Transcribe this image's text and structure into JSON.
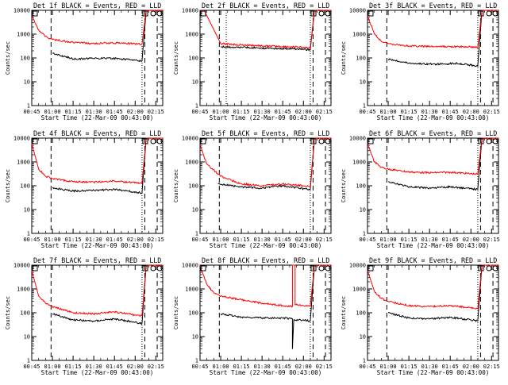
{
  "chart_data": [
    {
      "type": "line",
      "title": "Det 1f BLACK = Events, RED = LLD",
      "xlabel": "Start Time (22-Mar-09 00:43:00)",
      "ylabel": "Counts/sec",
      "yscale": "log",
      "ylim": [
        1,
        10000
      ],
      "xlim": [
        "00:45",
        "02:20"
      ],
      "xticks": [
        "00:45",
        "01:00",
        "01:15",
        "01:30",
        "01:45",
        "02:00",
        "02:15"
      ],
      "yticks": [
        "1",
        "10",
        "100",
        "1000",
        "10000"
      ],
      "grid": false,
      "vlines_dashed": [
        "00:59",
        "02:07",
        "02:16"
      ],
      "vlines_dotted": [
        "02:05"
      ],
      "annotation_markers": [
        "LLD",
        "LLD",
        "LLD"
      ],
      "series": [
        {
          "name": "Events",
          "color": "#000000",
          "x": [
            "01:00",
            "01:15",
            "01:30",
            "01:40",
            "01:50",
            "02:00",
            "02:05",
            "02:08"
          ],
          "y": [
            160,
            90,
            95,
            100,
            90,
            80,
            75,
            10000
          ]
        },
        {
          "name": "LLD",
          "color": "#ff0000",
          "x": [
            "00:45",
            "00:50",
            "00:55",
            "01:00",
            "01:15",
            "01:30",
            "01:40",
            "01:50",
            "02:00",
            "02:05",
            "02:08",
            "02:20"
          ],
          "y": [
            6000,
            1500,
            800,
            600,
            450,
            400,
            420,
            430,
            390,
            380,
            10000,
            10000
          ]
        }
      ]
    },
    {
      "type": "line",
      "title": "Det 2f BLACK = Events, RED = LLD",
      "xlabel": "Start Time (22-Mar-09 00:43:00)",
      "ylabel": "Counts/sec",
      "yscale": "log",
      "ylim": [
        1,
        10000
      ],
      "xlim": [
        "00:45",
        "02:20"
      ],
      "xticks": [
        "00:45",
        "01:00",
        "01:15",
        "01:30",
        "01:45",
        "02:00",
        "02:15"
      ],
      "yticks": [
        "1",
        "10",
        "100",
        "1000",
        "10000"
      ],
      "grid": false,
      "vlines_dashed": [
        "00:59",
        "02:07",
        "02:16"
      ],
      "vlines_dotted": [
        "01:04",
        "02:05"
      ],
      "annotation_markers": [
        "LLD",
        "LLD",
        "LLD"
      ],
      "series": [
        {
          "name": "Events",
          "color": "#000000",
          "x": [
            "01:00",
            "01:15",
            "01:30",
            "01:45",
            "02:00",
            "02:05",
            "02:08"
          ],
          "y": [
            300,
            280,
            260,
            250,
            230,
            220,
            10000
          ]
        },
        {
          "name": "LLD",
          "color": "#ff0000",
          "x": [
            "00:45",
            "00:48",
            "01:00",
            "01:15",
            "01:30",
            "01:45",
            "02:00",
            "02:05",
            "02:08",
            "02:20"
          ],
          "y": [
            10000,
            10000,
            400,
            350,
            320,
            300,
            280,
            260,
            10000,
            10000
          ]
        }
      ]
    },
    {
      "type": "line",
      "title": "Det 3f BLACK = Events, RED = LLD",
      "xlabel": "Start Time (22-Mar-09 00:43:00)",
      "ylabel": "Counts/sec",
      "yscale": "log",
      "ylim": [
        1,
        10000
      ],
      "xlim": [
        "00:45",
        "02:20"
      ],
      "xticks": [
        "00:45",
        "01:00",
        "01:15",
        "01:30",
        "01:45",
        "02:00",
        "02:15"
      ],
      "yticks": [
        "1",
        "10",
        "100",
        "1000",
        "10000"
      ],
      "grid": false,
      "vlines_dashed": [
        "00:59",
        "02:07",
        "02:16"
      ],
      "vlines_dotted": [
        "02:05"
      ],
      "annotation_markers": [
        "LLD",
        "LLD",
        "LLD"
      ],
      "series": [
        {
          "name": "Events",
          "color": "#000000",
          "x": [
            "01:00",
            "01:15",
            "01:30",
            "01:40",
            "01:50",
            "02:00",
            "02:05",
            "02:08"
          ],
          "y": [
            90,
            60,
            55,
            55,
            60,
            50,
            45,
            10000
          ]
        },
        {
          "name": "LLD",
          "color": "#ff0000",
          "x": [
            "00:45",
            "00:50",
            "00:55",
            "01:00",
            "01:15",
            "01:30",
            "01:45",
            "02:00",
            "02:05",
            "02:08",
            "02:20"
          ],
          "y": [
            6000,
            1000,
            500,
            400,
            320,
            300,
            300,
            290,
            280,
            10000,
            10000
          ]
        }
      ]
    },
    {
      "type": "line",
      "title": "Det 4f BLACK = Events, RED = LLD",
      "xlabel": "Start Time (22-Mar-09 00:43:00)",
      "ylabel": "Counts/sec",
      "yscale": "log",
      "ylim": [
        1,
        10000
      ],
      "xlim": [
        "00:45",
        "02:20"
      ],
      "xticks": [
        "00:45",
        "01:00",
        "01:15",
        "01:30",
        "01:45",
        "02:00",
        "02:15"
      ],
      "yticks": [
        "1",
        "10",
        "100",
        "1000",
        "10000"
      ],
      "grid": false,
      "vlines_dashed": [
        "00:59",
        "02:07",
        "02:16"
      ],
      "vlines_dotted": [
        "02:05"
      ],
      "annotation_markers": [
        "LLD",
        "LLD",
        "LLD"
      ],
      "series": [
        {
          "name": "Events",
          "color": "#000000",
          "x": [
            "01:00",
            "01:15",
            "01:30",
            "01:45",
            "01:55",
            "02:05",
            "02:08"
          ],
          "y": [
            80,
            60,
            65,
            70,
            60,
            50,
            10000
          ]
        },
        {
          "name": "LLD",
          "color": "#ff0000",
          "x": [
            "00:45",
            "00:50",
            "00:55",
            "01:00",
            "01:15",
            "01:30",
            "01:45",
            "01:55",
            "02:05",
            "02:08",
            "02:20"
          ],
          "y": [
            6000,
            500,
            250,
            200,
            150,
            140,
            160,
            140,
            130,
            10000,
            10000
          ]
        }
      ]
    },
    {
      "type": "line",
      "title": "Det 5f BLACK = Events, RED = LLD",
      "xlabel": "Start Time (22-Mar-09 00:43:00)",
      "ylabel": "Counts/sec",
      "yscale": "log",
      "ylim": [
        1,
        10000
      ],
      "xlim": [
        "00:45",
        "02:20"
      ],
      "xticks": [
        "00:45",
        "01:00",
        "01:15",
        "01:30",
        "01:45",
        "02:00",
        "02:15"
      ],
      "yticks": [
        "1",
        "10",
        "100",
        "1000",
        "10000"
      ],
      "grid": false,
      "vlines_dashed": [
        "00:59",
        "02:07",
        "02:16"
      ],
      "vlines_dotted": [
        "02:05"
      ],
      "annotation_markers": [
        "LLD",
        "LLD",
        "LLD"
      ],
      "series": [
        {
          "name": "Events",
          "color": "#000000",
          "x": [
            "00:58",
            "01:15",
            "01:30",
            "01:45",
            "02:00",
            "02:05",
            "02:08"
          ],
          "y": [
            120,
            90,
            80,
            100,
            75,
            70,
            10000
          ]
        },
        {
          "name": "LLD",
          "color": "#ff0000",
          "x": [
            "00:45",
            "00:50",
            "01:00",
            "01:15",
            "01:30",
            "01:45",
            "02:00",
            "02:05",
            "02:08",
            "02:20"
          ],
          "y": [
            5000,
            800,
            250,
            120,
            100,
            120,
            100,
            90,
            10000,
            10000
          ]
        }
      ]
    },
    {
      "type": "line",
      "title": "Det 6f BLACK = Events, RED = LLD",
      "xlabel": "Start Time (22-Mar-09 00:43:00)",
      "ylabel": "Counts/sec",
      "yscale": "log",
      "ylim": [
        1,
        10000
      ],
      "xlim": [
        "00:45",
        "02:20"
      ],
      "xticks": [
        "00:45",
        "01:00",
        "01:15",
        "01:30",
        "01:45",
        "02:00",
        "02:15"
      ],
      "yticks": [
        "1",
        "10",
        "100",
        "1000",
        "10000"
      ],
      "grid": false,
      "vlines_dashed": [
        "00:59",
        "02:07",
        "02:16"
      ],
      "vlines_dotted": [
        "02:05"
      ],
      "annotation_markers": [
        "LLD",
        "LLD",
        "LLD"
      ],
      "series": [
        {
          "name": "Events",
          "color": "#000000",
          "x": [
            "01:00",
            "01:15",
            "01:30",
            "01:45",
            "02:00",
            "02:05",
            "02:08"
          ],
          "y": [
            150,
            90,
            80,
            90,
            75,
            70,
            10000
          ]
        },
        {
          "name": "LLD",
          "color": "#ff0000",
          "x": [
            "00:45",
            "00:50",
            "00:55",
            "01:00",
            "01:15",
            "01:30",
            "01:45",
            "02:00",
            "02:05",
            "02:08",
            "02:20"
          ],
          "y": [
            6000,
            1000,
            600,
            500,
            380,
            350,
            370,
            320,
            310,
            10000,
            10000
          ]
        }
      ]
    },
    {
      "type": "line",
      "title": "Det 7f BLACK = Events, RED = LLD",
      "xlabel": "Start Time (22-Mar-09 00:43:00)",
      "ylabel": "Counts/sec",
      "yscale": "log",
      "ylim": [
        1,
        10000
      ],
      "xlim": [
        "00:45",
        "02:20"
      ],
      "xticks": [
        "00:45",
        "01:00",
        "01:15",
        "01:30",
        "01:45",
        "02:00",
        "02:15"
      ],
      "yticks": [
        "1",
        "10",
        "100",
        "1000",
        "10000"
      ],
      "grid": false,
      "vlines_dashed": [
        "00:59",
        "02:07",
        "02:16"
      ],
      "vlines_dotted": [
        "02:05"
      ],
      "annotation_markers": [
        "LLD",
        "LLD",
        "LLD"
      ],
      "series": [
        {
          "name": "Events",
          "color": "#000000",
          "x": [
            "01:00",
            "01:15",
            "01:30",
            "01:45",
            "02:00",
            "02:05",
            "02:08"
          ],
          "y": [
            90,
            50,
            45,
            55,
            40,
            35,
            10000
          ]
        },
        {
          "name": "LLD",
          "color": "#ff0000",
          "x": [
            "00:45",
            "00:50",
            "00:55",
            "01:00",
            "01:15",
            "01:30",
            "01:45",
            "02:00",
            "02:05",
            "02:08",
            "02:20"
          ],
          "y": [
            6000,
            500,
            250,
            180,
            100,
            90,
            110,
            80,
            75,
            10000,
            10000
          ]
        }
      ]
    },
    {
      "type": "line",
      "title": "Det 8f BLACK = Events, RED = LLD",
      "xlabel": "Start Time (22-Mar-09 00:43:00)",
      "ylabel": "Counts/sec",
      "yscale": "log",
      "ylim": [
        1,
        10000
      ],
      "xlim": [
        "00:45",
        "02:20"
      ],
      "xticks": [
        "00:45",
        "01:00",
        "01:15",
        "01:30",
        "01:45",
        "02:00",
        "02:15"
      ],
      "yticks": [
        "1",
        "10",
        "100",
        "1000",
        "10000"
      ],
      "grid": false,
      "vlines_dashed": [
        "00:59",
        "02:07",
        "02:16"
      ],
      "vlines_dotted": [
        "02:05"
      ],
      "annotation_markers": [
        "LLD",
        "LLD",
        "LLD"
      ],
      "series": [
        {
          "name": "Events",
          "color": "#000000",
          "x": [
            "01:00",
            "01:15",
            "01:30",
            "01:45",
            "01:52",
            "01:52",
            "01:53",
            "02:00",
            "02:05",
            "02:08"
          ],
          "y": [
            90,
            65,
            60,
            60,
            55,
            3,
            50,
            50,
            45,
            10000
          ]
        },
        {
          "name": "LLD",
          "color": "#ff0000",
          "x": [
            "00:45",
            "00:50",
            "00:55",
            "01:00",
            "01:15",
            "01:30",
            "01:45",
            "01:52",
            "01:52",
            "01:54",
            "01:54",
            "02:00",
            "02:05",
            "02:08",
            "02:20"
          ],
          "y": [
            10000,
            1500,
            700,
            500,
            350,
            250,
            200,
            180,
            10000,
            10000,
            220,
            200,
            190,
            10000,
            10000
          ]
        }
      ]
    },
    {
      "type": "line",
      "title": "Det 9f BLACK = Events, RED = LLD",
      "xlabel": "Start Time (22-Mar-09 00:43:00)",
      "ylabel": "Counts/sec",
      "yscale": "log",
      "ylim": [
        1,
        10000
      ],
      "xlim": [
        "00:45",
        "02:20"
      ],
      "xticks": [
        "00:45",
        "01:00",
        "01:15",
        "01:30",
        "01:45",
        "02:00",
        "02:15"
      ],
      "yticks": [
        "1",
        "10",
        "100",
        "1000",
        "10000"
      ],
      "grid": false,
      "vlines_dashed": [
        "00:59",
        "02:07",
        "02:16"
      ],
      "vlines_dotted": [
        "02:05"
      ],
      "annotation_markers": [
        "LLD",
        "LLD",
        "LLD"
      ],
      "series": [
        {
          "name": "Events",
          "color": "#000000",
          "x": [
            "01:00",
            "01:15",
            "01:30",
            "01:45",
            "02:00",
            "02:05",
            "02:08"
          ],
          "y": [
            100,
            60,
            55,
            65,
            50,
            45,
            10000
          ]
        },
        {
          "name": "LLD",
          "color": "#ff0000",
          "x": [
            "00:45",
            "00:50",
            "00:55",
            "01:00",
            "01:15",
            "01:30",
            "01:45",
            "02:00",
            "02:05",
            "02:08",
            "02:20"
          ],
          "y": [
            6000,
            800,
            400,
            300,
            200,
            180,
            200,
            160,
            150,
            10000,
            10000
          ]
        }
      ]
    }
  ]
}
